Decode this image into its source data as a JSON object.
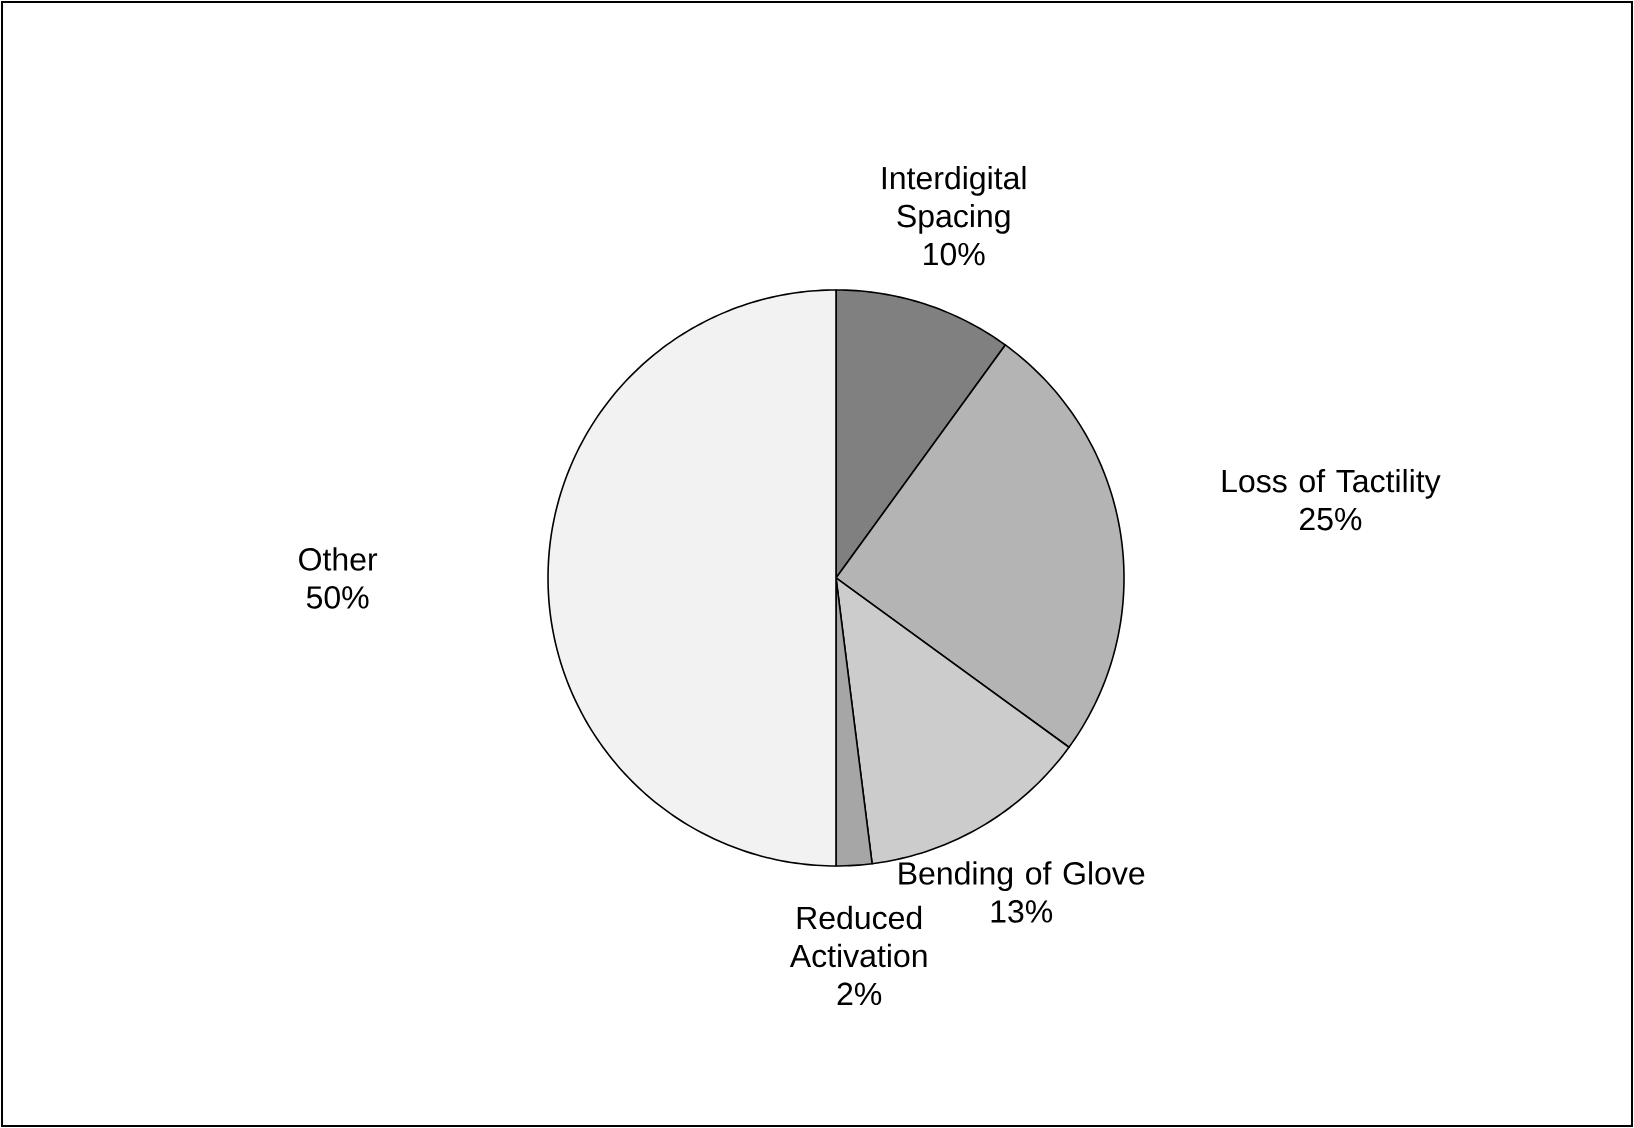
{
  "chart_data": {
    "type": "pie",
    "categories": [
      "Interdigital Spacing",
      "Loss of Tactility",
      "Bending of Glove",
      "Reduced Activation",
      "Other"
    ],
    "values": [
      10,
      25,
      13,
      2,
      50
    ],
    "value_labels": [
      "10%",
      "25%",
      "13%",
      "2%",
      "50%"
    ],
    "colors": [
      "#808080",
      "#b4b4b4",
      "#cccccc",
      "#a6a6a6",
      "#f2f2f2"
    ]
  }
}
